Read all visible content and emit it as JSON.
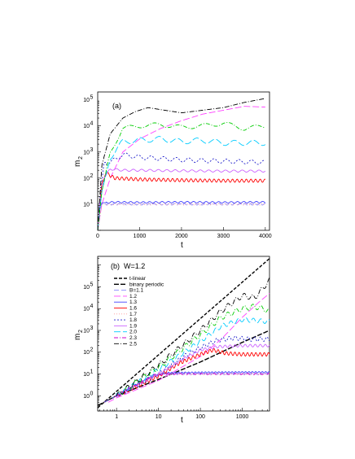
{
  "chart_data": [
    {
      "panel": "(a)",
      "type": "line",
      "xlabel": "t",
      "ylabel": "m",
      "ylabel_sub": "2",
      "xlim": [
        0,
        4100
      ],
      "ylim_log10": [
        0,
        5.3
      ],
      "yscale": "log",
      "x_ticks": [
        "0",
        "1000",
        "2000",
        "3000",
        "4000"
      ],
      "y_ticks": [
        "10",
        "10",
        "10",
        "10",
        "10"
      ],
      "y_tick_exponents": [
        "1",
        "2",
        "3",
        "4",
        "5"
      ],
      "series": [
        {
          "key": "B=1.1",
          "color": "#8a8aff",
          "dash": "6,3",
          "amp": 0.03,
          "period": 120,
          "points": [
            [
              0,
              0
            ],
            [
              50,
              0.8
            ],
            [
              100,
              1.0
            ],
            [
              400,
              1.0
            ],
            [
              1000,
              1.0
            ],
            [
              2000,
              1.0
            ],
            [
              3000,
              1.0
            ],
            [
              4000,
              1.0
            ]
          ]
        },
        {
          "key": "1.2",
          "color": "#ff44ff",
          "dash": "8,3",
          "amp": 0.0,
          "period": 200,
          "points": [
            [
              0,
              0
            ],
            [
              100,
              1.0
            ],
            [
              300,
              2.0
            ],
            [
              600,
              3.0
            ],
            [
              1000,
              3.5
            ],
            [
              1500,
              3.9
            ],
            [
              2000,
              4.2
            ],
            [
              2500,
              4.45
            ],
            [
              3000,
              4.6
            ],
            [
              3500,
              4.75
            ],
            [
              4000,
              4.72
            ]
          ]
        },
        {
          "key": "1.3",
          "color": "#4444ff",
          "dash": "",
          "amp": 0.03,
          "period": 150,
          "points": [
            [
              0,
              0
            ],
            [
              50,
              0.9
            ],
            [
              100,
              1.05
            ],
            [
              400,
              1.08
            ],
            [
              1000,
              1.07
            ],
            [
              2000,
              1.08
            ],
            [
              3000,
              1.07
            ],
            [
              4000,
              1.08
            ]
          ]
        },
        {
          "key": "1.6",
          "color": "#ff0000",
          "dash": "",
          "amp": 0.06,
          "period": 110,
          "points": [
            [
              0,
              0
            ],
            [
              50,
              1.0
            ],
            [
              100,
              1.8
            ],
            [
              200,
              2.2
            ],
            [
              400,
              2.0
            ],
            [
              1000,
              1.95
            ],
            [
              2000,
              1.92
            ],
            [
              3000,
              1.9
            ],
            [
              4000,
              1.9
            ]
          ]
        },
        {
          "key": "1.7",
          "color": "#ff9999",
          "dash": "1,2",
          "amp": 0.03,
          "period": 130,
          "points": [
            [
              0,
              0
            ],
            [
              100,
              1.0
            ],
            [
              400,
              1.0
            ],
            [
              1000,
              1.0
            ],
            [
              2000,
              1.0
            ],
            [
              3000,
              1.0
            ],
            [
              4000,
              1.0
            ]
          ]
        },
        {
          "key": "1.8",
          "color": "#2222cc",
          "dash": "2,2",
          "amp": 0.08,
          "period": 300,
          "points": [
            [
              0,
              0
            ],
            [
              50,
              1.2
            ],
            [
              150,
              2.6
            ],
            [
              300,
              2.6
            ],
            [
              600,
              2.9
            ],
            [
              1000,
              2.8
            ],
            [
              2000,
              2.7
            ],
            [
              3000,
              2.65
            ],
            [
              4000,
              2.6
            ]
          ]
        },
        {
          "key": "1.9",
          "color": "#cc66ff",
          "dash": "",
          "amp": 0.04,
          "period": 200,
          "points": [
            [
              0,
              0
            ],
            [
              50,
              1.0
            ],
            [
              150,
              2.0
            ],
            [
              300,
              2.35
            ],
            [
              600,
              2.3
            ],
            [
              1000,
              2.3
            ],
            [
              2000,
              2.28
            ],
            [
              3000,
              2.27
            ],
            [
              4000,
              2.27
            ]
          ]
        },
        {
          "key": "2.0",
          "color": "#00ccff",
          "dash": "8,3",
          "amp": 0.1,
          "period": 450,
          "points": [
            [
              0,
              0
            ],
            [
              100,
              1.5
            ],
            [
              300,
              2.8
            ],
            [
              600,
              3.4
            ],
            [
              1000,
              3.45
            ],
            [
              1500,
              3.5
            ],
            [
              2000,
              3.4
            ],
            [
              2500,
              3.45
            ],
            [
              3000,
              3.35
            ],
            [
              4000,
              3.35
            ]
          ]
        },
        {
          "key": "2.3",
          "color": "#00cc00",
          "dash": "5,2,1,2",
          "amp": 0.08,
          "period": 600,
          "points": [
            [
              0,
              0
            ],
            [
              100,
              1.5
            ],
            [
              300,
              3.0
            ],
            [
              600,
              3.9
            ],
            [
              1000,
              4.0
            ],
            [
              1500,
              4.05
            ],
            [
              2000,
              3.95
            ],
            [
              2500,
              4.0
            ],
            [
              3000,
              4.1
            ],
            [
              3500,
              3.9
            ],
            [
              4000,
              4.0
            ]
          ]
        },
        {
          "key": "2.5",
          "color": "#000000",
          "dash": "6,2,1,2",
          "amp": 0.0,
          "period": 200,
          "points": [
            [
              0,
              0
            ],
            [
              100,
              2.5
            ],
            [
              300,
              3.7
            ],
            [
              600,
              4.3
            ],
            [
              900,
              4.55
            ],
            [
              1200,
              4.7
            ],
            [
              1600,
              4.6
            ],
            [
              2000,
              4.5
            ],
            [
              2500,
              4.6
            ],
            [
              3000,
              4.7
            ],
            [
              3500,
              4.9
            ],
            [
              4000,
              5.05
            ]
          ]
        }
      ]
    },
    {
      "panel": "(b)",
      "title": "W=1.2",
      "type": "line",
      "xlabel": "t",
      "ylabel": "m",
      "ylabel_sub": "2",
      "xscale": "log",
      "yscale": "log",
      "xlim_log10": [
        -0.45,
        3.65
      ],
      "ylim_log10": [
        -0.7,
        6.4
      ],
      "x_ticks": [
        "1",
        "10",
        "100",
        "1000"
      ],
      "y_ticks": [
        "10",
        "10",
        "10",
        "10",
        "10",
        "10"
      ],
      "y_tick_exponents": [
        "0",
        "1",
        "2",
        "3",
        "4",
        "5"
      ],
      "legend": [
        {
          "label": "t-linear",
          "color": "#000000",
          "dash": "4,2"
        },
        {
          "label": "binary periodic",
          "color": "#000000",
          "dash": "6,2"
        },
        {
          "label": "B=1.1",
          "color": "#8a8aff",
          "dash": "6,3"
        },
        {
          "label": "1.2",
          "color": "#ff44ff",
          "dash": "8,3"
        },
        {
          "label": "1.3",
          "color": "#4444ff",
          "dash": ""
        },
        {
          "label": "1.6",
          "color": "#ff0000",
          "dash": ""
        },
        {
          "label": "1.7",
          "color": "#ff9999",
          "dash": "1,2"
        },
        {
          "label": "1.8",
          "color": "#2222cc",
          "dash": "2,2"
        },
        {
          "label": "1.9",
          "color": "#cc66ff",
          "dash": ""
        },
        {
          "label": "2.0",
          "color": "#00ccff",
          "dash": "8,3"
        },
        {
          "label": "2.3",
          "color": "#cc00cc",
          "dash": "5,2,1,2"
        },
        {
          "label": "2.5",
          "color": "#000000",
          "dash": "6,2,1,2"
        }
      ],
      "series": [
        {
          "key": "t-linear",
          "color": "#000000",
          "dash": "4,2",
          "width": 1.4,
          "points": [
            [
              -0.45,
              -0.55
            ],
            [
              3.65,
              6.3
            ]
          ]
        },
        {
          "key": "binary periodic",
          "color": "#000000",
          "dash": "6,2",
          "width": 1.4,
          "points": [
            [
              -0.45,
              -0.45
            ],
            [
              0,
              0
            ],
            [
              1,
              0.75
            ],
            [
              2,
              1.55
            ],
            [
              3,
              2.45
            ],
            [
              3.65,
              3.0
            ]
          ]
        },
        {
          "key": "B=1.1",
          "color": "#8a8aff",
          "dash": "6,3",
          "amp": 0.03,
          "period": 0.08,
          "points": [
            [
              -0.3,
              -0.3
            ],
            [
              0,
              0
            ],
            [
              0.5,
              0.55
            ],
            [
              0.9,
              0.95
            ],
            [
              1.2,
              1.0
            ],
            [
              2,
              1.0
            ],
            [
              3,
              1.0
            ],
            [
              3.65,
              1.0
            ]
          ]
        },
        {
          "key": "1.2",
          "color": "#ff44ff",
          "dash": "8,3",
          "amp": 0.0,
          "period": 0.1,
          "points": [
            [
              -0.2,
              -0.3
            ],
            [
              0,
              -0.1
            ],
            [
              1,
              0.7
            ],
            [
              2,
              1.8
            ],
            [
              2.5,
              2.6
            ],
            [
              3,
              3.6
            ],
            [
              3.4,
              4.3
            ],
            [
              3.65,
              4.7
            ]
          ]
        },
        {
          "key": "1.3",
          "color": "#4444ff",
          "dash": "",
          "amp": 0.03,
          "period": 0.08,
          "points": [
            [
              -0.3,
              -0.3
            ],
            [
              0,
              0
            ],
            [
              0.5,
              0.55
            ],
            [
              0.9,
              0.95
            ],
            [
              1.2,
              1.05
            ],
            [
              2,
              1.07
            ],
            [
              3,
              1.08
            ],
            [
              3.65,
              1.08
            ]
          ]
        },
        {
          "key": "1.6",
          "color": "#ff0000",
          "dash": "",
          "amp": 0.08,
          "period": 0.1,
          "points": [
            [
              -0.2,
              -0.2
            ],
            [
              0,
              0
            ],
            [
              1,
              0.9
            ],
            [
              1.5,
              1.5
            ],
            [
              2,
              1.9
            ],
            [
              2.3,
              2.1
            ],
            [
              2.6,
              1.95
            ],
            [
              3,
              1.9
            ],
            [
              3.65,
              1.9
            ]
          ]
        },
        {
          "key": "1.7",
          "color": "#ff9999",
          "dash": "1,2",
          "amp": 0.03,
          "period": 0.08,
          "points": [
            [
              -0.3,
              -0.3
            ],
            [
              0,
              0
            ],
            [
              0.9,
              0.95
            ],
            [
              1.2,
              1.0
            ],
            [
              2,
              1.0
            ],
            [
              3,
              1.0
            ],
            [
              3.65,
              1.0
            ]
          ]
        },
        {
          "key": "1.8",
          "color": "#2222cc",
          "dash": "2,2",
          "amp": 0.1,
          "period": 0.15,
          "points": [
            [
              -0.2,
              -0.2
            ],
            [
              0,
              0
            ],
            [
              1,
              1.0
            ],
            [
              1.6,
              1.8
            ],
            [
              2,
              2.2
            ],
            [
              2.4,
              2.55
            ],
            [
              2.8,
              2.65
            ],
            [
              3.2,
              2.6
            ],
            [
              3.65,
              2.6
            ]
          ]
        },
        {
          "key": "1.9",
          "color": "#cc66ff",
          "dash": "",
          "amp": 0.06,
          "period": 0.12,
          "points": [
            [
              -0.2,
              -0.2
            ],
            [
              0,
              0
            ],
            [
              1,
              1.0
            ],
            [
              1.6,
              1.7
            ],
            [
              2,
              2.1
            ],
            [
              2.4,
              2.25
            ],
            [
              3,
              2.3
            ],
            [
              3.65,
              2.3
            ]
          ]
        },
        {
          "key": "2.0",
          "color": "#00ccff",
          "dash": "8,3",
          "amp": 0.1,
          "period": 0.18,
          "points": [
            [
              -0.2,
              -0.2
            ],
            [
              0,
              0
            ],
            [
              1,
              1.2
            ],
            [
              2,
              2.5
            ],
            [
              2.5,
              3.2
            ],
            [
              3,
              3.5
            ],
            [
              3.65,
              3.4
            ]
          ]
        },
        {
          "key": "2.3",
          "color": "#00cc00",
          "dash": "5,2,1,2",
          "amp": 0.12,
          "period": 0.2,
          "points": [
            [
              -0.2,
              -0.2
            ],
            [
              0,
              0
            ],
            [
              1,
              1.3
            ],
            [
              2,
              2.8
            ],
            [
              2.5,
              3.6
            ],
            [
              3,
              4.0
            ],
            [
              3.3,
              4.1
            ],
            [
              3.65,
              3.9
            ]
          ]
        },
        {
          "key": "2.3b",
          "color": "#cc00cc",
          "dash": "5,2,1,2",
          "amp": 0.03,
          "period": 0.1,
          "points": [
            [
              -0.2,
              -0.2
            ],
            [
              0,
              0
            ],
            [
              0.9,
              0.95
            ],
            [
              1.2,
              1.0
            ],
            [
              2,
              1.0
            ],
            [
              3,
              1.0
            ],
            [
              3.65,
              1.0
            ]
          ]
        },
        {
          "key": "2.5",
          "color": "#000000",
          "dash": "6,2,1,2",
          "amp": 0.12,
          "period": 0.2,
          "points": [
            [
              -0.2,
              -0.2
            ],
            [
              0,
              0
            ],
            [
              1,
              1.4
            ],
            [
              2,
              3.0
            ],
            [
              2.5,
              3.9
            ],
            [
              3,
              4.6
            ],
            [
              3.3,
              4.5
            ],
            [
              3.65,
              5.3
            ]
          ]
        }
      ]
    }
  ]
}
